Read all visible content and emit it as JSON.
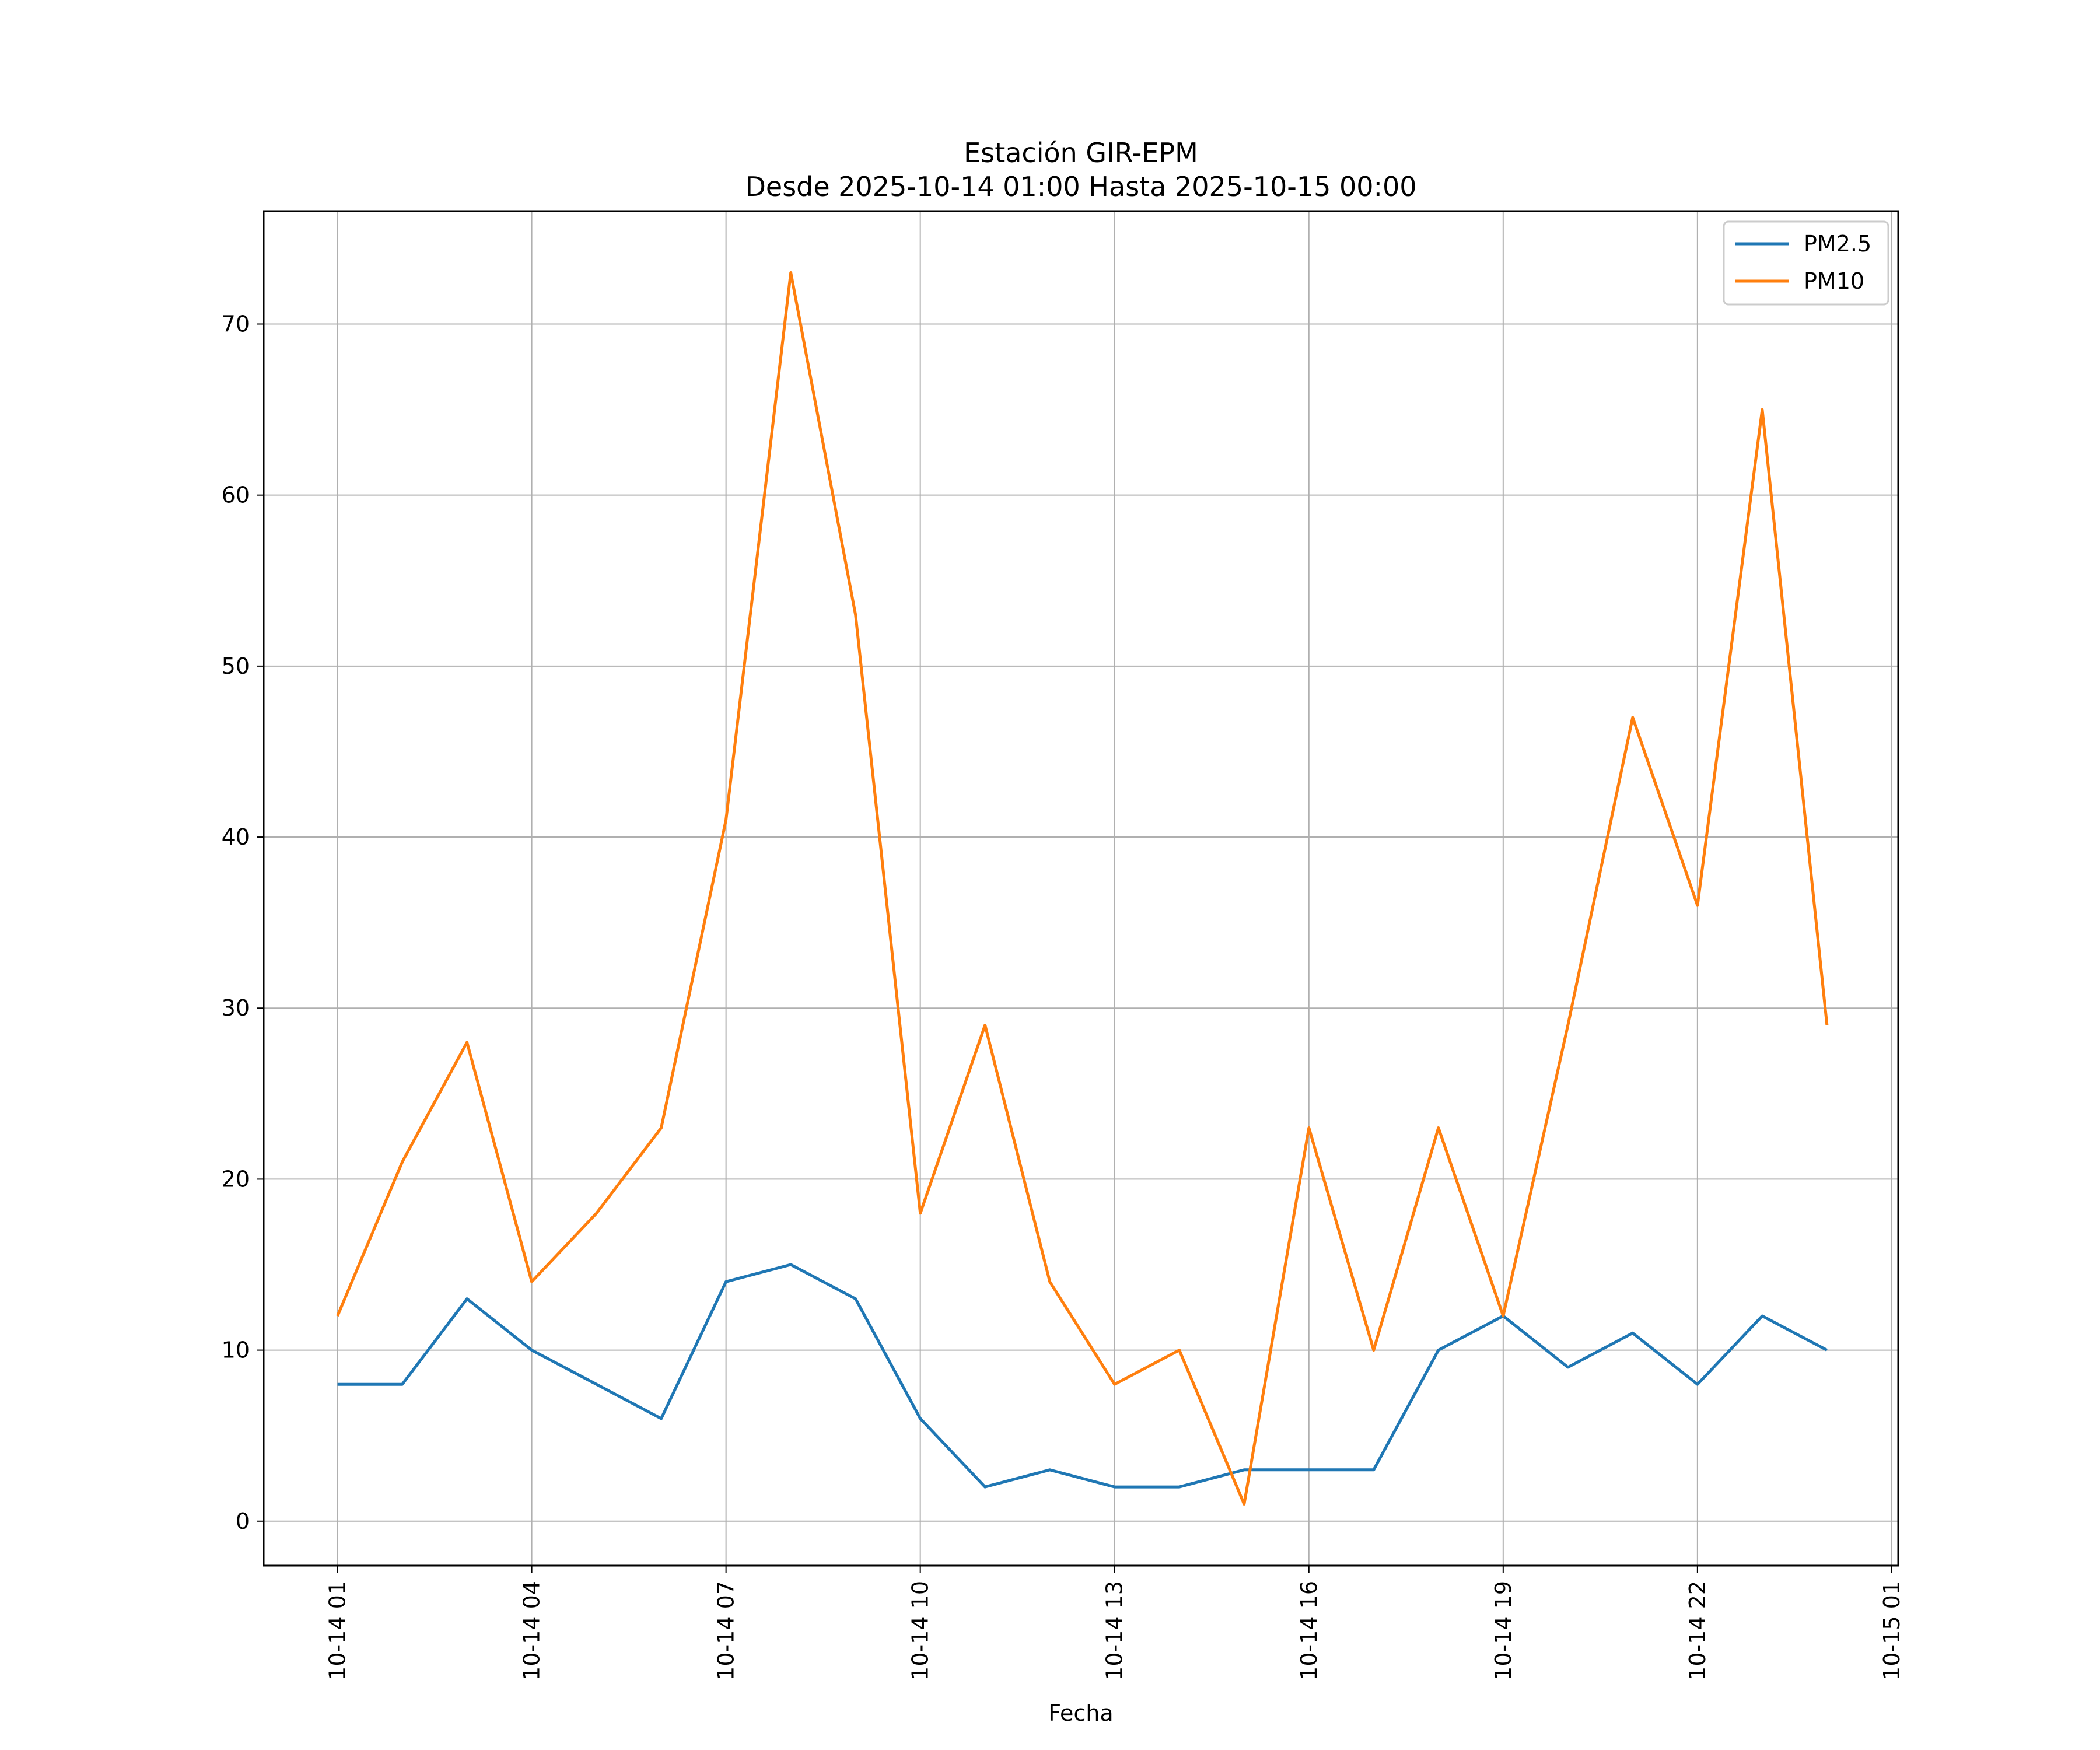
{
  "chart_data": {
    "type": "line",
    "title_line1": "Estación GIR-EPM",
    "title_line2": "Desde 2025-10-14 01:00 Hasta 2025-10-15 00:00",
    "xlabel": "Fecha",
    "ylabel": "",
    "x_hours": [
      1,
      2,
      3,
      4,
      5,
      6,
      7,
      8,
      9,
      10,
      11,
      12,
      13,
      14,
      15,
      16,
      17,
      18,
      19,
      20,
      21,
      22,
      23,
      24
    ],
    "series": [
      {
        "name": "PM2.5",
        "color": "#1f77b4",
        "values": [
          8,
          8,
          13,
          10,
          8,
          6,
          14,
          15,
          13,
          6,
          2,
          3,
          2,
          2,
          3,
          3,
          3,
          10,
          12,
          9,
          11,
          8,
          12,
          10
        ]
      },
      {
        "name": "PM10",
        "color": "#ff7f0e",
        "values": [
          12,
          21,
          28,
          14,
          18,
          23,
          41,
          73,
          53,
          18,
          29,
          14,
          8,
          10,
          1,
          23,
          10,
          23,
          12,
          29,
          47,
          36,
          65,
          29
        ]
      }
    ],
    "xlim": [
      -0.14,
      25.1
    ],
    "ylim": [
      -2.6,
      76.6
    ],
    "yticks": [
      0,
      10,
      20,
      30,
      40,
      50,
      60,
      70
    ],
    "xticks": [
      {
        "hour": 1,
        "label": "10-14 01"
      },
      {
        "hour": 4,
        "label": "10-14 04"
      },
      {
        "hour": 7,
        "label": "10-14 07"
      },
      {
        "hour": 10,
        "label": "10-14 10"
      },
      {
        "hour": 13,
        "label": "10-14 13"
      },
      {
        "hour": 16,
        "label": "10-14 16"
      },
      {
        "hour": 19,
        "label": "10-14 19"
      },
      {
        "hour": 22,
        "label": "10-14 22"
      },
      {
        "hour": 25,
        "label": "10-15 01"
      }
    ],
    "grid": true,
    "legend_position": "top-right"
  }
}
